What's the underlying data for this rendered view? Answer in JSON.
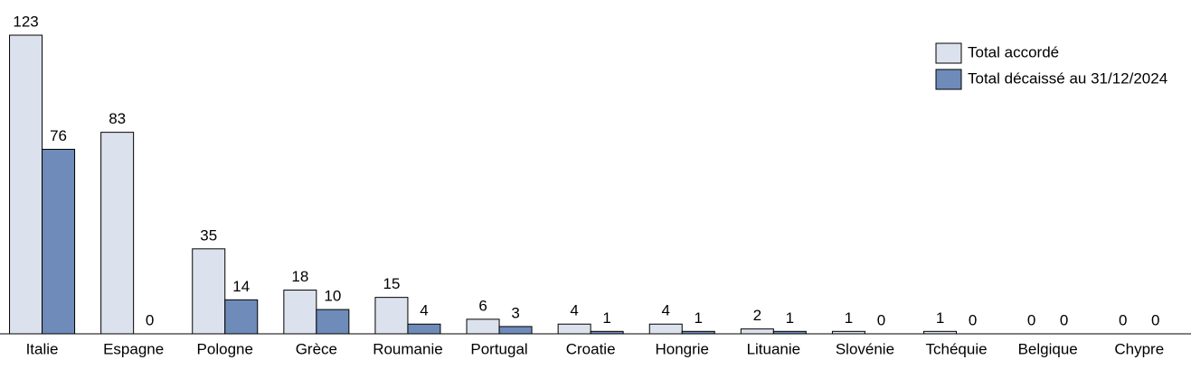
{
  "chart_data": {
    "type": "bar",
    "categories": [
      "Italie",
      "Espagne",
      "Pologne",
      "Grèce",
      "Roumanie",
      "Portugal",
      "Croatie",
      "Hongrie",
      "Lituanie",
      "Slovénie",
      "Tchéquie",
      "Belgique",
      "Chypre"
    ],
    "series": [
      {
        "name": "Total accordé",
        "color": "#dce2ed",
        "values": [
          123,
          83,
          35,
          18,
          15,
          6,
          4,
          4,
          2,
          1,
          1,
          0,
          0
        ]
      },
      {
        "name": "Total décaissé au 31/12/2024",
        "color": "#6e8bb9",
        "values": [
          76,
          0,
          14,
          10,
          4,
          3,
          1,
          1,
          1,
          0,
          0,
          0,
          0
        ]
      }
    ],
    "legend": "top-right"
  }
}
